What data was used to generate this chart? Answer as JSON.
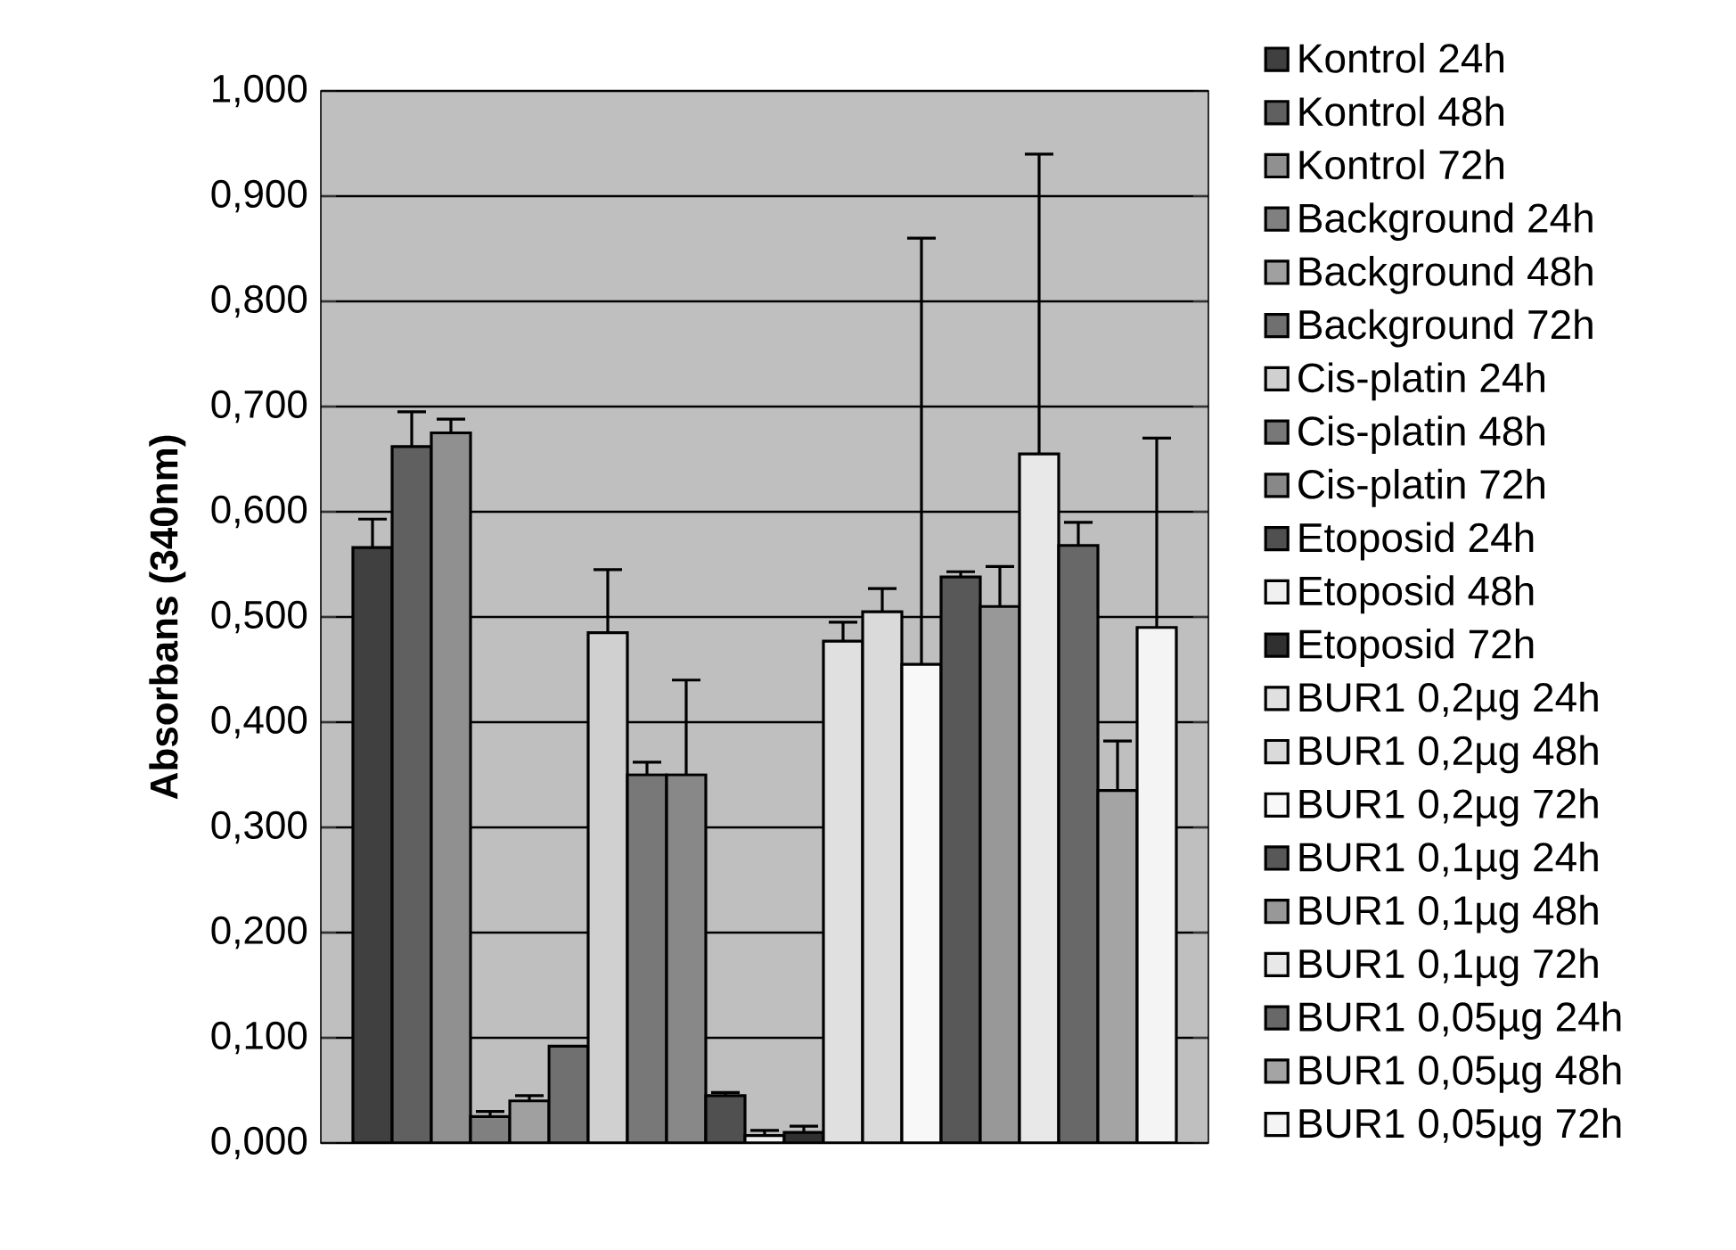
{
  "chart_data": {
    "type": "bar",
    "ylabel": "Absorbans (340nm)",
    "categories": [
      null
    ],
    "ylim": [
      0,
      1
    ],
    "yticks": [
      {
        "value": 0,
        "label": "0,000"
      },
      {
        "value": 0.1,
        "label": "0,100"
      },
      {
        "value": 0.2,
        "label": "0,200"
      },
      {
        "value": 0.3,
        "label": "0,300"
      },
      {
        "value": 0.4,
        "label": "0,400"
      },
      {
        "value": 0.5,
        "label": "0,500"
      },
      {
        "value": 0.6,
        "label": "0,600"
      },
      {
        "value": 0.7,
        "label": "0,700"
      },
      {
        "value": 0.8,
        "label": "0,800"
      },
      {
        "value": 0.9,
        "label": "0,900"
      },
      {
        "value": 1,
        "label": "1,000"
      }
    ],
    "grid": "y",
    "legend": "right",
    "series": [
      {
        "name": "Kontrol 24h",
        "color": "#404040",
        "values": [
          0.566
        ],
        "errors": [
          0.027
        ]
      },
      {
        "name": "Kontrol 48h",
        "color": "#606060",
        "values": [
          0.662
        ],
        "errors": [
          0.033
        ]
      },
      {
        "name": "Kontrol 72h",
        "color": "#909090",
        "values": [
          0.675
        ],
        "errors": [
          0.013
        ]
      },
      {
        "name": "Background 24h",
        "color": "#808080",
        "values": [
          0.025
        ],
        "errors": [
          0.005
        ]
      },
      {
        "name": "Background 48h",
        "color": "#a0a0a0",
        "values": [
          0.04
        ],
        "errors": [
          0.005
        ]
      },
      {
        "name": "Background 72h",
        "color": "#707070",
        "values": [
          0.092
        ],
        "errors": [
          null
        ]
      },
      {
        "name": "Cis-platin 24h",
        "color": "#d0d0d0",
        "values": [
          0.485
        ],
        "errors": [
          0.06
        ]
      },
      {
        "name": "Cis-platin 48h",
        "color": "#787878",
        "values": [
          0.35
        ],
        "errors": [
          0.012
        ]
      },
      {
        "name": "Cis-platin 72h",
        "color": "#888888",
        "values": [
          0.35
        ],
        "errors": [
          0.09
        ]
      },
      {
        "name": "Etoposid 24h",
        "color": "#505050",
        "values": [
          0.045
        ],
        "errors": [
          0.003
        ]
      },
      {
        "name": "Etoposid 48h",
        "color": "#f0f0f0",
        "values": [
          0.007
        ],
        "errors": [
          0.005
        ]
      },
      {
        "name": "Etoposid 72h",
        "color": "#303030",
        "values": [
          0.01
        ],
        "errors": [
          0.006
        ]
      },
      {
        "name": "BUR1 0,2µg 24h",
        "color": "#e0e0e0",
        "values": [
          0.477
        ],
        "errors": [
          0.018
        ]
      },
      {
        "name": "BUR1 0,2µg 48h",
        "color": "#dadada",
        "values": [
          0.505
        ],
        "errors": [
          0.022
        ]
      },
      {
        "name": "BUR1 0,2µg 72h",
        "color": "#f8f8f8",
        "values": [
          0.455
        ],
        "errors": [
          0.405
        ]
      },
      {
        "name": "BUR1 0,1µg 24h",
        "color": "#585858",
        "values": [
          0.538
        ],
        "errors": [
          0.005
        ]
      },
      {
        "name": "BUR1 0,1µg 48h",
        "color": "#989898",
        "values": [
          0.51
        ],
        "errors": [
          0.038
        ]
      },
      {
        "name": "BUR1 0,1µg 72h",
        "color": "#e8e8e8",
        "values": [
          0.655
        ],
        "errors": [
          0.285
        ]
      },
      {
        "name": "BUR1 0,05µg 24h",
        "color": "#686868",
        "values": [
          0.568
        ],
        "errors": [
          0.022
        ]
      },
      {
        "name": "BUR1 0,05µg 48h",
        "color": "#a4a4a4",
        "values": [
          0.335
        ],
        "errors": [
          0.047
        ]
      },
      {
        "name": "BUR1 0,05µg 72h",
        "color": "#f4f4f4",
        "values": [
          0.49
        ],
        "errors": [
          0.18
        ]
      }
    ]
  }
}
